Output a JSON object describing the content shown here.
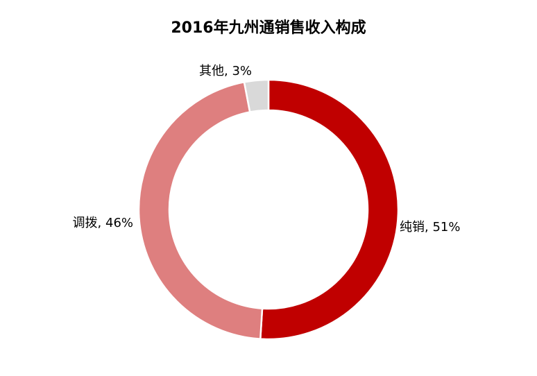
{
  "chart_data": {
    "type": "pie",
    "variant": "donut",
    "title": "2016年九州通销售收入构成",
    "unit": "%",
    "categories": [
      "纯销",
      "调拨",
      "其他"
    ],
    "values": [
      51,
      46,
      3
    ],
    "labels": [
      "纯销, 51%",
      "调拨, 46%",
      "其他, 3%"
    ],
    "colors": [
      "#c00000",
      "#de7f7f",
      "#d9d9d9"
    ],
    "legend": "none",
    "label_placement": "outside"
  }
}
